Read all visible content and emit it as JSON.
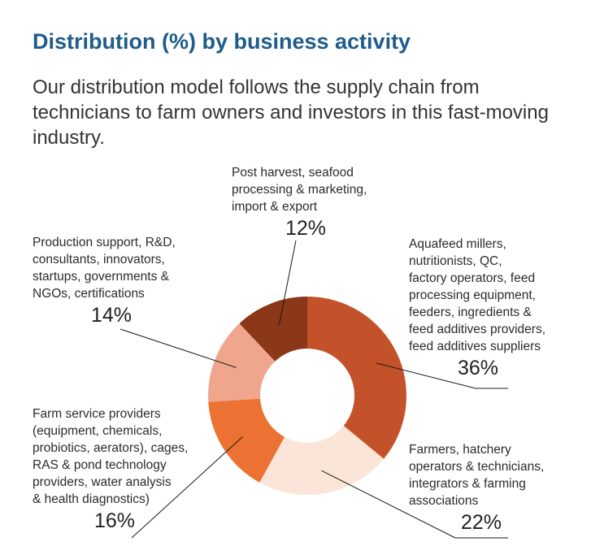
{
  "header": {
    "title": "Distribution (%) by business activity",
    "subtitle": "Our distribution model follows the supply chain from technicians to farm owners and investors in this fast-moving industry."
  },
  "chart_data": {
    "type": "pie",
    "variant": "donut",
    "title": "Distribution (%) by business activity",
    "slices": [
      {
        "label": "Aquafeed millers,\nnutritionists, QC,\nfactory operators, feed\nprocessing equipment,\nfeeders, ingredients &\nfeed additives providers,\nfeed additives suppliers",
        "value": 36,
        "display": "36%",
        "color": "#c3522a"
      },
      {
        "label": "Farmers, hatchery\noperators & technicians,\nintegrators & farming\nassociations",
        "value": 22,
        "display": "22%",
        "color": "#fbe4d8"
      },
      {
        "label": "Farm service providers\n(equipment, chemicals,\nprobiotics, aerators), cages,\nRAS & pond technology\nproviders, water analysis\n& health diagnostics)",
        "value": 16,
        "display": "16%",
        "color": "#ec7233"
      },
      {
        "label": "Production support, R&D,\nconsultants, innovators,\nstartups, governments &\nNGOs, certifications",
        "value": 14,
        "display": "14%",
        "color": "#f0a68c"
      },
      {
        "label": "Post harvest, seafood\nprocessing & marketing,\nimport & export",
        "value": 12,
        "display": "12%",
        "color": "#8a3817"
      }
    ]
  }
}
